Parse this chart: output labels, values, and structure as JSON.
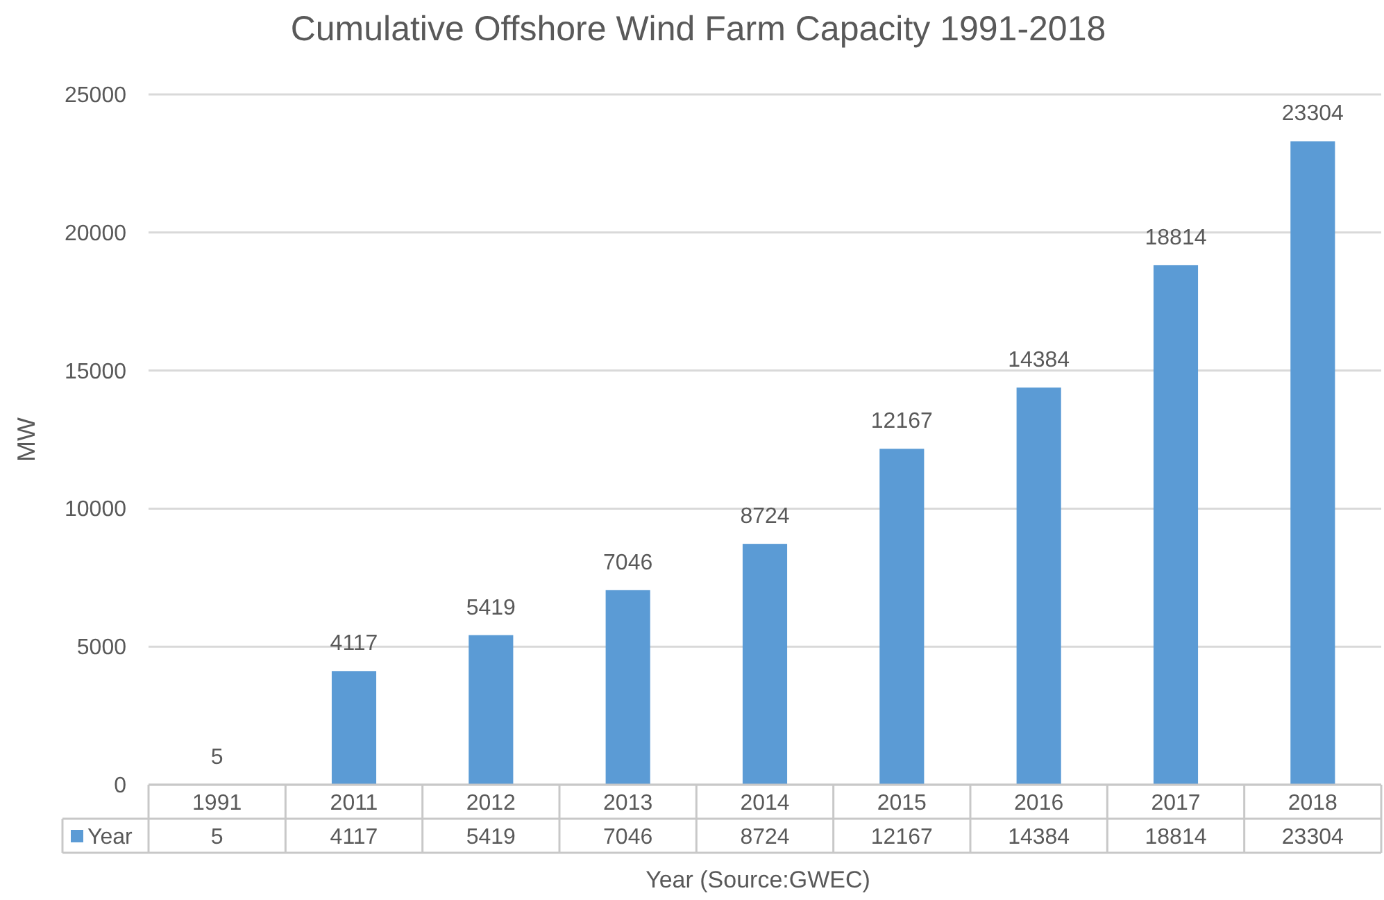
{
  "chart_data": {
    "type": "bar",
    "title": "Cumulative Offshore Wind Farm Capacity 1991-2018",
    "xlabel": "Year (Source:GWEC)",
    "ylabel": "MW",
    "categories": [
      "1991",
      "2011",
      "2012",
      "2013",
      "2014",
      "2015",
      "2016",
      "2017",
      "2018"
    ],
    "series": [
      {
        "name": "Year",
        "color": "#5b9bd5",
        "values": [
          5,
          4117,
          5419,
          7046,
          8724,
          12167,
          14384,
          18814,
          23304
        ]
      }
    ],
    "ylim": [
      0,
      25000
    ],
    "yticks": [
      0,
      5000,
      10000,
      15000,
      20000,
      25000
    ],
    "grid": "y",
    "data_labels": true,
    "legend": "bottom left",
    "annotations": [
      {
        "text": "5",
        "x": "1991",
        "y": 5
      },
      {
        "text": "4117",
        "x": "2011",
        "y": 4117
      },
      {
        "text": "5419",
        "x": "2012",
        "y": 5419
      },
      {
        "text": "7046",
        "x": "2013",
        "y": 7046
      },
      {
        "text": "8724",
        "x": "2014",
        "y": 8724
      },
      {
        "text": "12167",
        "x": "2015",
        "y": 12167
      },
      {
        "text": "14384",
        "x": "2016",
        "y": 14384
      },
      {
        "text": "18814",
        "x": "2017",
        "y": 18814
      },
      {
        "text": "23304",
        "x": "2018",
        "y": 23304
      }
    ]
  }
}
